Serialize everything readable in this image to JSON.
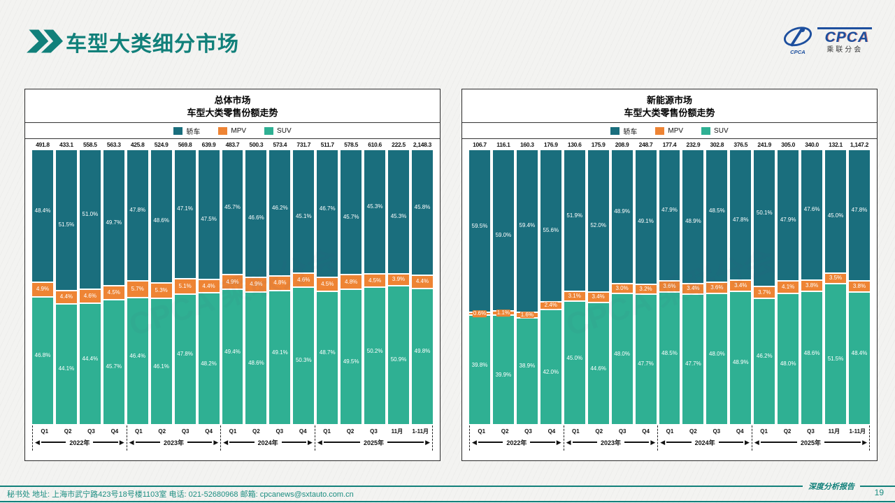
{
  "header": {
    "title": "车型大类细分市场"
  },
  "logo": {
    "brand": "CPCA",
    "sub": "乘联分会",
    "emblem_caption": "CPCA"
  },
  "legend": {
    "sedan": "轿车",
    "mpv": "MPV",
    "suv": "SUV"
  },
  "colors": {
    "sedan": "#1a6e7d",
    "mpv": "#ee8434",
    "suv": "#2fb093",
    "accent": "#11807a",
    "footer_text": "#1b8d80",
    "logo_blue": "#1d4f9e"
  },
  "watermark": "CPCA 乘联分会",
  "chart_data": [
    {
      "type": "bar",
      "stacked": true,
      "title": "总体市场",
      "subtitle": "车型大类零售份额走势",
      "ylim": [
        0,
        100
      ],
      "categories": [
        "Q1",
        "Q2",
        "Q3",
        "Q4",
        "Q1",
        "Q2",
        "Q3",
        "Q4",
        "Q1",
        "Q2",
        "Q3",
        "Q4",
        "Q1",
        "Q2",
        "Q3",
        "11月",
        "1-11月"
      ],
      "year_groups": [
        {
          "label": "2022年",
          "span": 4
        },
        {
          "label": "2023年",
          "span": 4
        },
        {
          "label": "2024年",
          "span": 4
        },
        {
          "label": "2025年",
          "span": 5
        }
      ],
      "totals": [
        "491.8",
        "433.1",
        "558.5",
        "563.3",
        "425.8",
        "524.9",
        "569.8",
        "639.9",
        "483.7",
        "500.3",
        "573.4",
        "731.7",
        "511.7",
        "578.5",
        "610.6",
        "222.5",
        "2,148.3"
      ],
      "series": [
        {
          "name": "轿车",
          "color_key": "sedan",
          "values": [
            48.4,
            51.5,
            51.0,
            49.7,
            47.8,
            48.6,
            47.1,
            47.5,
            45.7,
            46.6,
            46.2,
            45.1,
            46.7,
            45.7,
            45.3,
            45.3,
            45.8
          ]
        },
        {
          "name": "MPV",
          "color_key": "mpv",
          "values": [
            4.9,
            4.4,
            4.6,
            4.5,
            5.7,
            5.3,
            5.1,
            4.4,
            4.9,
            4.9,
            4.8,
            4.6,
            4.5,
            4.8,
            4.5,
            3.9,
            4.4
          ]
        },
        {
          "name": "SUV",
          "color_key": "suv",
          "values": [
            46.8,
            44.1,
            44.4,
            45.7,
            46.4,
            46.1,
            47.8,
            48.2,
            49.4,
            48.6,
            49.1,
            50.3,
            48.7,
            49.5,
            50.2,
            50.9,
            49.8
          ]
        }
      ]
    },
    {
      "type": "bar",
      "stacked": true,
      "title": "新能源市场",
      "subtitle": "车型大类零售份额走势",
      "ylim": [
        0,
        100
      ],
      "categories": [
        "Q1",
        "Q2",
        "Q3",
        "Q4",
        "Q1",
        "Q2",
        "Q3",
        "Q4",
        "Q1",
        "Q2",
        "Q3",
        "Q4",
        "Q1",
        "Q2",
        "Q3",
        "11月",
        "1-11月"
      ],
      "year_groups": [
        {
          "label": "2022年",
          "span": 4
        },
        {
          "label": "2023年",
          "span": 4
        },
        {
          "label": "2024年",
          "span": 4
        },
        {
          "label": "2025年",
          "span": 5
        }
      ],
      "totals": [
        "106.7",
        "116.1",
        "160.3",
        "176.9",
        "130.6",
        "175.9",
        "208.9",
        "248.7",
        "177.4",
        "232.9",
        "302.8",
        "376.5",
        "241.9",
        "305.0",
        "340.0",
        "132.1",
        "1,147.2"
      ],
      "series": [
        {
          "name": "轿车",
          "color_key": "sedan",
          "values": [
            59.5,
            59.0,
            59.4,
            55.6,
            51.9,
            52.0,
            48.9,
            49.1,
            47.9,
            48.9,
            48.5,
            47.8,
            50.1,
            47.9,
            47.6,
            45.0,
            47.8
          ]
        },
        {
          "name": "MPV",
          "color_key": "mpv",
          "values": [
            0.6,
            1.1,
            1.6,
            2.4,
            3.1,
            3.4,
            3.0,
            3.2,
            3.6,
            3.4,
            3.6,
            3.4,
            3.7,
            4.1,
            3.8,
            3.5,
            3.8
          ]
        },
        {
          "name": "SUV",
          "color_key": "suv",
          "values": [
            39.8,
            39.9,
            38.9,
            42.0,
            45.0,
            44.6,
            48.0,
            47.7,
            48.5,
            47.7,
            48.0,
            48.9,
            46.2,
            48.0,
            48.6,
            51.5,
            48.4
          ]
        }
      ]
    }
  ],
  "footer": {
    "info": "秘书处  地址: 上海市武宁路423号18号楼1103室 电话: 021-52680968  邮箱: cpcanews@sxtauto.com.cn",
    "tagline": "深度分析报告",
    "page": "19"
  }
}
